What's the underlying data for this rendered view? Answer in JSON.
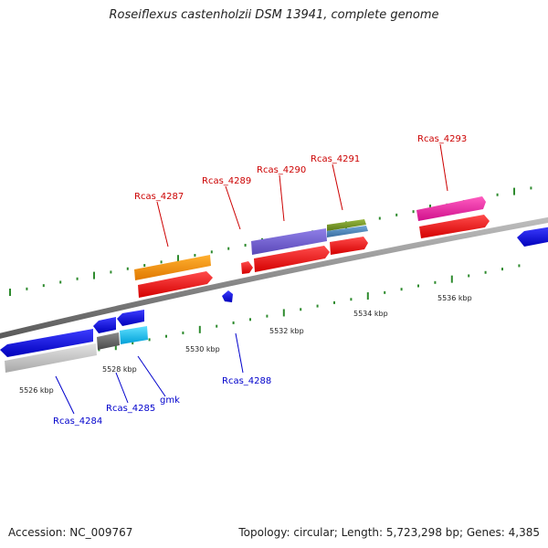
{
  "title": "Roseiflexus castenholzii DSM 13941, complete genome",
  "footer": {
    "accession": "Accession: NC_009767",
    "topology": "Topology: circular; Length: 5,723,298 bp; Genes: 4,385"
  },
  "colors": {
    "top_label": "#cc0000",
    "bottom_label": "#0000cc",
    "tick": "#2e8b2e",
    "backbone": "#8c8c8c"
  },
  "kbp_labels": [
    "5526 kbp",
    "5528 kbp",
    "5530 kbp",
    "5532 kbp",
    "5534 kbp",
    "5536 kbp"
  ],
  "top_labels": [
    "Rcas_4287",
    "Rcas_4289",
    "Rcas_4290",
    "Rcas_4291",
    "Rcas_4293"
  ],
  "bottom_labels": [
    "Rcas_4284",
    "Rcas_4285",
    "gmk",
    "Rcas_4288"
  ]
}
